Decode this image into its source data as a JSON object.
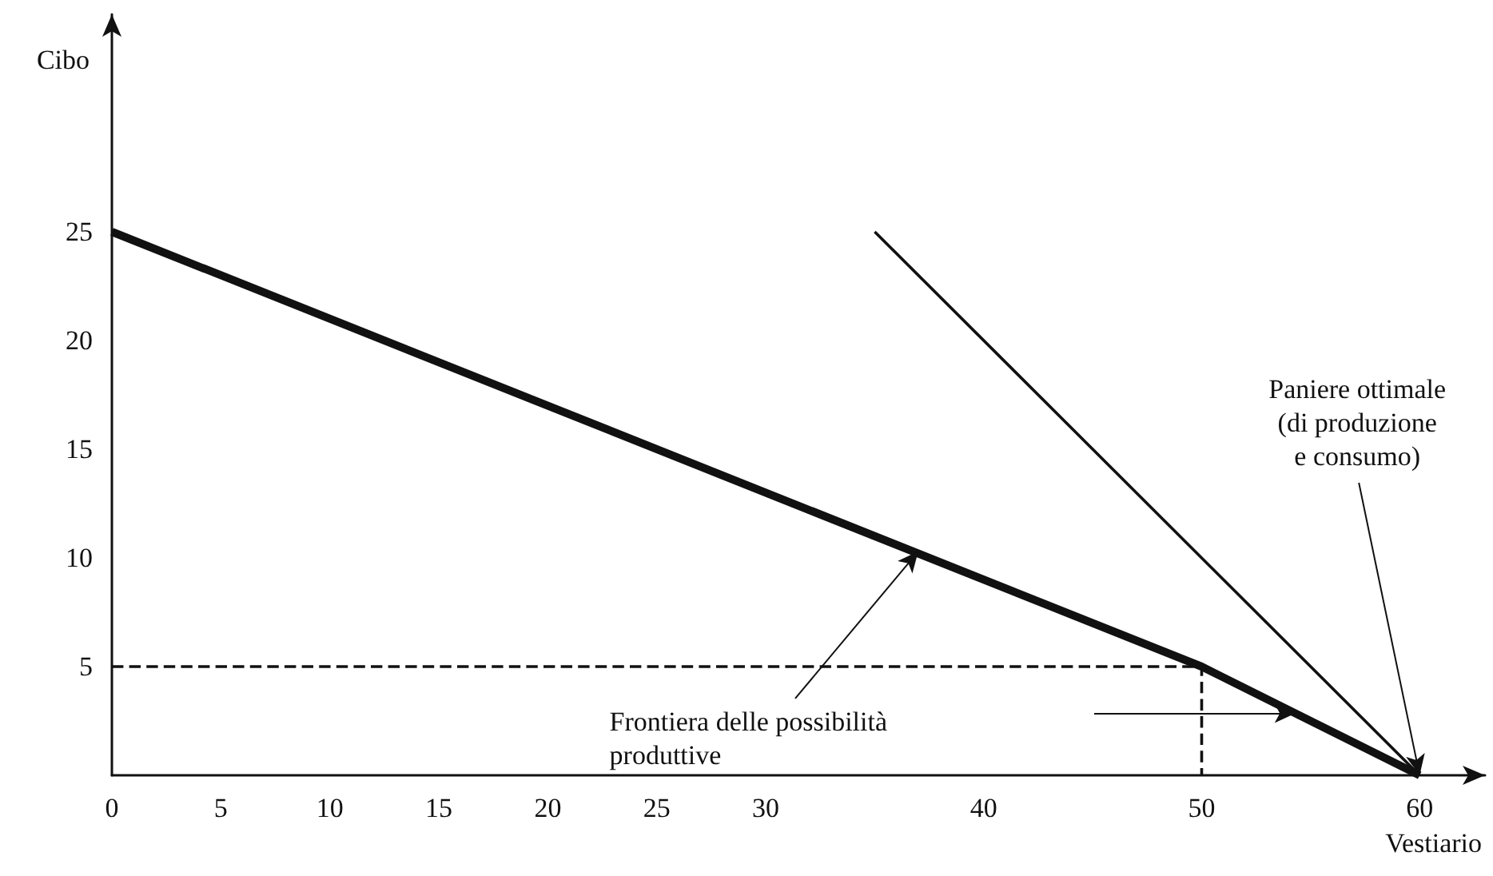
{
  "chart_data": {
    "type": "line",
    "xlabel": "Vestiario",
    "ylabel": "Cibo",
    "xlim": [
      0,
      63
    ],
    "ylim": [
      0,
      35
    ],
    "xticks": [
      0,
      5,
      10,
      15,
      20,
      25,
      30,
      40,
      50,
      60
    ],
    "yticks": [
      5,
      10,
      15,
      20,
      25
    ],
    "marker": "none",
    "series": [
      {
        "color": "#111111",
        "x": [
          0,
          50,
          60
        ],
        "values": [
          25,
          5,
          0
        ],
        "line_style": "solid"
      },
      {
        "color": "#111111",
        "x": [
          35,
          60
        ],
        "values": [
          25,
          0
        ],
        "line_style": "solid"
      },
      {
        "color": "#111111",
        "x": [
          0,
          50,
          50
        ],
        "values": [
          5,
          5,
          0
        ],
        "line_style": "dashed"
      }
    ],
    "annotations": [
      {
        "text": "Paniere ottimale\n(di produzione\ne consumo)",
        "x": 60,
        "y": 0
      },
      {
        "text": "Frontiera delle possibilità\nproduttive",
        "x": 37,
        "y": 10.3
      }
    ]
  }
}
